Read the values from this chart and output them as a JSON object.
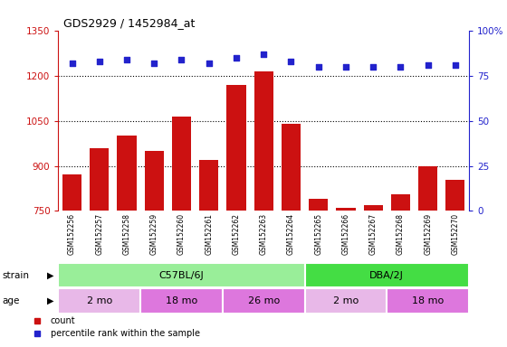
{
  "title": "GDS2929 / 1452984_at",
  "samples": [
    "GSM152256",
    "GSM152257",
    "GSM152258",
    "GSM152259",
    "GSM152260",
    "GSM152261",
    "GSM152262",
    "GSM152263",
    "GSM152264",
    "GSM152265",
    "GSM152266",
    "GSM152267",
    "GSM152268",
    "GSM152269",
    "GSM152270"
  ],
  "counts": [
    872,
    960,
    1000,
    950,
    1065,
    920,
    1170,
    1215,
    1040,
    790,
    760,
    770,
    805,
    900,
    855
  ],
  "percentile_ranks": [
    82,
    83,
    84,
    82,
    84,
    82,
    85,
    87,
    83,
    80,
    80,
    80,
    80,
    81,
    81
  ],
  "ylim_left": [
    750,
    1350
  ],
  "ylim_right": [
    0,
    100
  ],
  "yticks_left": [
    750,
    900,
    1050,
    1200,
    1350
  ],
  "yticks_right": [
    0,
    25,
    50,
    75,
    100
  ],
  "bar_color": "#cc1111",
  "dot_color": "#2222cc",
  "bg_color": "#ffffff",
  "plot_bg": "#ffffff",
  "label_area_color": "#c8c8c8",
  "strain_row": {
    "label": "strain",
    "groups": [
      {
        "name": "C57BL/6J",
        "start": 0,
        "end": 8,
        "color": "#99ee99"
      },
      {
        "name": "DBA/2J",
        "start": 9,
        "end": 14,
        "color": "#44dd44"
      }
    ]
  },
  "age_row": {
    "label": "age",
    "groups": [
      {
        "name": "2 mo",
        "start": 0,
        "end": 2,
        "color": "#e8b8e8"
      },
      {
        "name": "18 mo",
        "start": 3,
        "end": 5,
        "color": "#dd77dd"
      },
      {
        "name": "26 mo",
        "start": 6,
        "end": 8,
        "color": "#dd77dd"
      },
      {
        "name": "2 mo",
        "start": 9,
        "end": 11,
        "color": "#e8b8e8"
      },
      {
        "name": "18 mo",
        "start": 12,
        "end": 14,
        "color": "#dd77dd"
      }
    ]
  },
  "legend_items": [
    {
      "label": "count",
      "color": "#cc1111"
    },
    {
      "label": "percentile rank within the sample",
      "color": "#2222cc"
    }
  ]
}
